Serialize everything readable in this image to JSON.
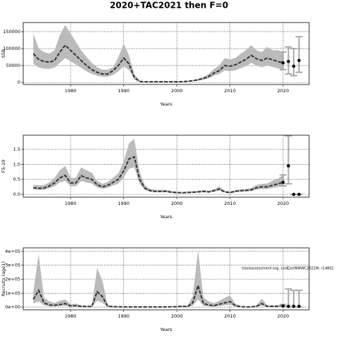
{
  "chart_data": [
    {
      "type": "band-line",
      "title": "2020+TAC2021 then F=0",
      "ylabel": "SSB",
      "xlabel": "Years",
      "xlim": [
        1971.1,
        2024.9
      ],
      "xticks": [
        1980,
        1990,
        2000,
        2010,
        2020
      ],
      "ylim": [
        -6000,
        177000
      ],
      "yticks": [
        0,
        50000,
        100000,
        150000
      ],
      "grid": true,
      "line_color": "#333333",
      "band_color": "#bbbbbb",
      "bar_color": "#aaaaaa",
      "point_color": "#000000",
      "x": [
        1973,
        1974,
        1975,
        1976,
        1977,
        1978,
        1979,
        1980,
        1981,
        1982,
        1983,
        1984,
        1985,
        1986,
        1987,
        1988,
        1989,
        1990,
        1991,
        1992,
        1993,
        1994,
        1995,
        1996,
        1997,
        1998,
        1999,
        2000,
        2001,
        2002,
        2003,
        2004,
        2005,
        2006,
        2007,
        2008,
        2009,
        2010,
        2011,
        2012,
        2013,
        2014,
        2015,
        2016,
        2017,
        2018,
        2019,
        2020
      ],
      "values": [
        85000,
        68000,
        62000,
        60000,
        65000,
        90000,
        110000,
        95000,
        80000,
        65000,
        50000,
        38000,
        30000,
        25000,
        25000,
        35000,
        50000,
        72000,
        55000,
        15000,
        3000,
        2000,
        2000,
        2000,
        2000,
        2000,
        2000,
        2000,
        2500,
        3500,
        5000,
        8000,
        12000,
        18000,
        28000,
        35000,
        50000,
        48000,
        52000,
        60000,
        68000,
        80000,
        70000,
        65000,
        72000,
        67000,
        62000,
        58000
      ],
      "upper": [
        145000,
        100000,
        90000,
        85000,
        95000,
        140000,
        170000,
        145000,
        120000,
        95000,
        75000,
        58000,
        45000,
        38000,
        38000,
        45000,
        75000,
        115000,
        80000,
        25000,
        5000,
        3000,
        3000,
        3000,
        3000,
        3000,
        3000,
        3000,
        4000,
        5000,
        7000,
        11000,
        16000,
        25000,
        40000,
        50000,
        72000,
        68000,
        72000,
        85000,
        95000,
        110000,
        95000,
        90000,
        105000,
        95000,
        95000,
        90000
      ],
      "lower": [
        55000,
        44000,
        41000,
        40000,
        44000,
        58000,
        72000,
        63000,
        53000,
        43000,
        33000,
        25000,
        20000,
        17000,
        17000,
        22000,
        33000,
        48000,
        37000,
        9000,
        1500,
        1000,
        1000,
        1000,
        1000,
        1000,
        1000,
        1000,
        1500,
        2000,
        3000,
        5000,
        8000,
        12000,
        20000,
        25000,
        35000,
        33000,
        36000,
        42000,
        48000,
        58000,
        50000,
        45000,
        50000,
        46000,
        42000,
        38000
      ],
      "projection": {
        "x": [
          2020,
          2021,
          2022,
          2023
        ],
        "values": [
          58000,
          62000,
          48000,
          65000
        ],
        "lower": [
          38000,
          25000,
          20000,
          30000
        ],
        "upper": [
          90000,
          105000,
          100000,
          135000
        ]
      }
    },
    {
      "type": "band-line",
      "ylabel": "F5-10",
      "xlabel": "Years",
      "xlim": [
        1971.1,
        2024.9
      ],
      "xticks": [
        1980,
        1990,
        2000,
        2010,
        2020
      ],
      "ylim": [
        -0.094,
        1.97
      ],
      "yticks": [
        {
          "value": 0,
          "label": "0.0"
        },
        0.5,
        {
          "value": 1,
          "label": "1.0"
        },
        1.5
      ],
      "grid": true,
      "line_color": "#333333",
      "band_color": "#bbbbbb",
      "bar_color": "#aaaaaa",
      "point_color": "#000000",
      "x": [
        1973,
        1974,
        1975,
        1976,
        1977,
        1978,
        1979,
        1980,
        1981,
        1982,
        1983,
        1984,
        1985,
        1986,
        1987,
        1988,
        1989,
        1990,
        1991,
        1992,
        1993,
        1994,
        1995,
        1996,
        1997,
        1998,
        1999,
        2000,
        2001,
        2002,
        2003,
        2004,
        2005,
        2006,
        2007,
        2008,
        2009,
        2010,
        2011,
        2012,
        2013,
        2014,
        2015,
        2016,
        2017,
        2018,
        2019,
        2020
      ],
      "values": [
        0.22,
        0.2,
        0.21,
        0.28,
        0.38,
        0.55,
        0.63,
        0.38,
        0.38,
        0.62,
        0.55,
        0.5,
        0.32,
        0.25,
        0.3,
        0.4,
        0.5,
        0.78,
        1.18,
        1.25,
        0.5,
        0.2,
        0.12,
        0.1,
        0.1,
        0.1,
        0.07,
        0.06,
        0.05,
        0.06,
        0.07,
        0.08,
        0.1,
        0.08,
        0.12,
        0.18,
        0.08,
        0.06,
        0.1,
        0.12,
        0.13,
        0.15,
        0.22,
        0.25,
        0.25,
        0.3,
        0.35,
        0.4
      ],
      "upper": [
        0.32,
        0.3,
        0.31,
        0.4,
        0.55,
        0.8,
        0.95,
        0.55,
        0.55,
        0.9,
        0.8,
        0.72,
        0.45,
        0.35,
        0.42,
        0.55,
        0.7,
        1.1,
        1.7,
        1.85,
        0.75,
        0.3,
        0.18,
        0.15,
        0.15,
        0.15,
        0.11,
        0.09,
        0.08,
        0.09,
        0.1,
        0.12,
        0.14,
        0.12,
        0.17,
        0.26,
        0.12,
        0.09,
        0.14,
        0.17,
        0.18,
        0.21,
        0.31,
        0.35,
        0.36,
        0.45,
        0.52,
        0.65
      ],
      "lower": [
        0.16,
        0.15,
        0.15,
        0.2,
        0.27,
        0.4,
        0.45,
        0.27,
        0.27,
        0.44,
        0.4,
        0.36,
        0.23,
        0.18,
        0.22,
        0.29,
        0.36,
        0.56,
        0.85,
        0.9,
        0.36,
        0.14,
        0.09,
        0.07,
        0.07,
        0.07,
        0.05,
        0.04,
        0.04,
        0.04,
        0.05,
        0.06,
        0.07,
        0.06,
        0.09,
        0.13,
        0.06,
        0.04,
        0.07,
        0.09,
        0.09,
        0.11,
        0.16,
        0.18,
        0.18,
        0.21,
        0.24,
        0.28
      ],
      "projection": {
        "x": [
          2020,
          2021,
          2022,
          2023
        ],
        "values": [
          0.4,
          0.95,
          0,
          0
        ],
        "lower": [
          0.28,
          0.35,
          0,
          0
        ],
        "upper": [
          0.65,
          1.95,
          0,
          0
        ]
      }
    },
    {
      "type": "band-line",
      "ylabel": "Recruits (age1)",
      "xlabel": "Years",
      "annotation": "stockassessment.org, codEastNWWC2021M, r14802",
      "xlim": [
        1971.1,
        2024.9
      ],
      "xticks": [
        1980,
        1990,
        2000,
        2010,
        2020
      ],
      "ylim": [
        -20000,
        425000
      ],
      "yticks": [
        {
          "value": 0,
          "label": "0e+00"
        },
        {
          "value": 100000,
          "label": "1e+05"
        },
        {
          "value": 200000,
          "label": "2e+05"
        },
        {
          "value": 300000,
          "label": "3e+05"
        },
        {
          "value": 400000,
          "label": "4e+05"
        }
      ],
      "grid": true,
      "line_color": "#333333",
      "band_color": "#bbbbbb",
      "bar_color": "#aaaaaa",
      "point_color": "#000000",
      "x": [
        1973,
        1974,
        1975,
        1976,
        1977,
        1978,
        1979,
        1980,
        1981,
        1982,
        1983,
        1984,
        1985,
        1986,
        1987,
        1988,
        1989,
        1990,
        1991,
        1992,
        1993,
        1994,
        1995,
        1996,
        1997,
        1998,
        1999,
        2000,
        2001,
        2002,
        2003,
        2004,
        2005,
        2006,
        2007,
        2008,
        2009,
        2010,
        2011,
        2012,
        2013,
        2014,
        2015,
        2016,
        2017,
        2018,
        2019,
        2020
      ],
      "values": [
        55000,
        120000,
        30000,
        15000,
        12000,
        18000,
        25000,
        8000,
        10000,
        5000,
        4000,
        3000,
        110000,
        75000,
        5000,
        3000,
        2000,
        1500,
        1000,
        1000,
        1000,
        800,
        800,
        800,
        800,
        1000,
        2000,
        3000,
        5000,
        3000,
        30000,
        155000,
        25000,
        15000,
        10000,
        20000,
        30000,
        40000,
        10000,
        3000,
        1000,
        2000,
        5000,
        25000,
        5000,
        5000,
        6000,
        8000
      ],
      "upper": [
        110000,
        380000,
        70000,
        40000,
        30000,
        45000,
        55000,
        20000,
        25000,
        12000,
        10000,
        8000,
        280000,
        190000,
        12000,
        7000,
        5000,
        4000,
        3000,
        3000,
        3000,
        2000,
        2000,
        2000,
        2000,
        3000,
        5000,
        8000,
        12000,
        8000,
        80000,
        410000,
        70000,
        40000,
        28000,
        45000,
        65000,
        85000,
        25000,
        8000,
        3000,
        5000,
        12000,
        60000,
        12000,
        12000,
        14000,
        18000
      ],
      "lower": [
        25000,
        40000,
        12000,
        6000,
        5000,
        7000,
        10000,
        3000,
        4000,
        2000,
        1500,
        1000,
        45000,
        30000,
        2000,
        1000,
        800,
        600,
        400,
        400,
        400,
        300,
        300,
        300,
        300,
        400,
        800,
        1000,
        2000,
        1000,
        10000,
        55000,
        9000,
        5000,
        3500,
        8000,
        13000,
        17000,
        4000,
        1000,
        300,
        800,
        2000,
        10000,
        2000,
        2000,
        2500,
        3500
      ],
      "projection": {
        "x": [
          2020,
          2021,
          2022,
          2023
        ],
        "values": [
          8000,
          5000,
          5000,
          5000
        ],
        "lower": [
          3500,
          1000,
          1000,
          1000
        ],
        "upper": [
          18000,
          130000,
          120000,
          120000
        ]
      }
    }
  ]
}
